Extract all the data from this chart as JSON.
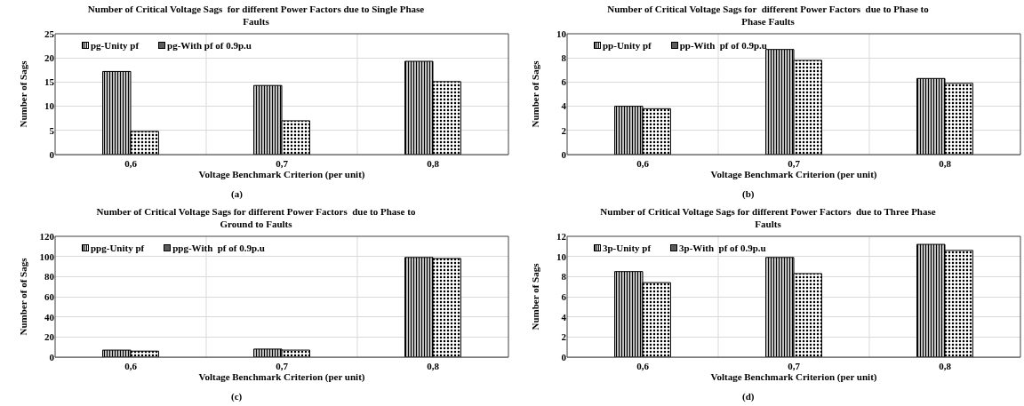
{
  "chart_data": [
    {
      "type": "bar",
      "title": "Number of Critical Voltage Sags  for different Power Factors due to Single Phase Faults",
      "xlabel": "Voltage Benchmark Criterion (per unit)",
      "ylabel": "Number of Sags",
      "annotations": [
        "(a)"
      ],
      "categories": [
        "0,6",
        "0,7",
        "0,8"
      ],
      "series": [
        {
          "name": "pg-Unity pf",
          "color": "#000000",
          "values": [
            17.2,
            14.3,
            19.3
          ]
        },
        {
          "name": "pg-With pf of 0.9p.u",
          "color": "#000000",
          "values": [
            4.8,
            7.0,
            15.1
          ]
        }
      ],
      "ylim": [
        0,
        25
      ],
      "yticks": [
        0,
        5,
        10,
        15,
        20,
        25
      ],
      "grid": true,
      "legend": "top left"
    },
    {
      "type": "bar",
      "title": "Number of Critical Voltage Sags for  different Power Factors  due to Phase to Phase Faults",
      "xlabel": "Voltage Benchmark Criterion (per unit)",
      "ylabel": "Number of Sags",
      "annotations": [
        "(b)"
      ],
      "categories": [
        "0,6",
        "0,7",
        "0,8"
      ],
      "series": [
        {
          "name": "pp-Unity pf",
          "color": "#000000",
          "values": [
            4.0,
            8.7,
            6.3
          ]
        },
        {
          "name": "pp-With  pf of 0.9p.u",
          "color": "#000000",
          "values": [
            3.8,
            7.8,
            5.9
          ]
        }
      ],
      "ylim": [
        0,
        10
      ],
      "yticks": [
        0,
        2,
        4,
        6,
        8,
        10
      ],
      "grid": true,
      "legend": "top left"
    },
    {
      "type": "bar",
      "title": "Number of Critical Voltage Sags for different Power Factors  due to Phase to Ground to Faults",
      "xlabel": "Voltage Benchmark Criterion (per unit)",
      "ylabel": "Number of of Sags",
      "annotations": [
        "(c)"
      ],
      "categories": [
        "0,6",
        "0,7",
        "0,8"
      ],
      "series": [
        {
          "name": "ppg-Unity pf",
          "color": "#000000",
          "values": [
            7,
            8,
            99
          ]
        },
        {
          "name": "ppg-With  pf of 0.9p.u",
          "color": "#000000",
          "values": [
            6,
            7,
            98
          ]
        }
      ],
      "ylim": [
        0,
        120
      ],
      "yticks": [
        0,
        20,
        40,
        60,
        80,
        100,
        120
      ],
      "grid": true,
      "legend": "top left"
    },
    {
      "type": "bar",
      "title": "Number of Critical Voltage Sags for different Power Factors  due to Three Phase Faults",
      "xlabel": "Voltage Benchmark Criterion (per unit)",
      "ylabel": "Number of Sags",
      "annotations": [
        "(d)"
      ],
      "categories": [
        "0,6",
        "0,7",
        "0,8"
      ],
      "series": [
        {
          "name": "3p-Unity pf",
          "color": "#000000",
          "values": [
            8.5,
            9.9,
            11.2
          ]
        },
        {
          "name": "3p-With  pf of 0.9p.u",
          "color": "#000000",
          "values": [
            7.4,
            8.3,
            10.6
          ]
        }
      ],
      "ylim": [
        0,
        12
      ],
      "yticks": [
        0,
        2,
        4,
        6,
        8,
        10,
        12
      ],
      "grid": true,
      "legend": "top left"
    }
  ]
}
